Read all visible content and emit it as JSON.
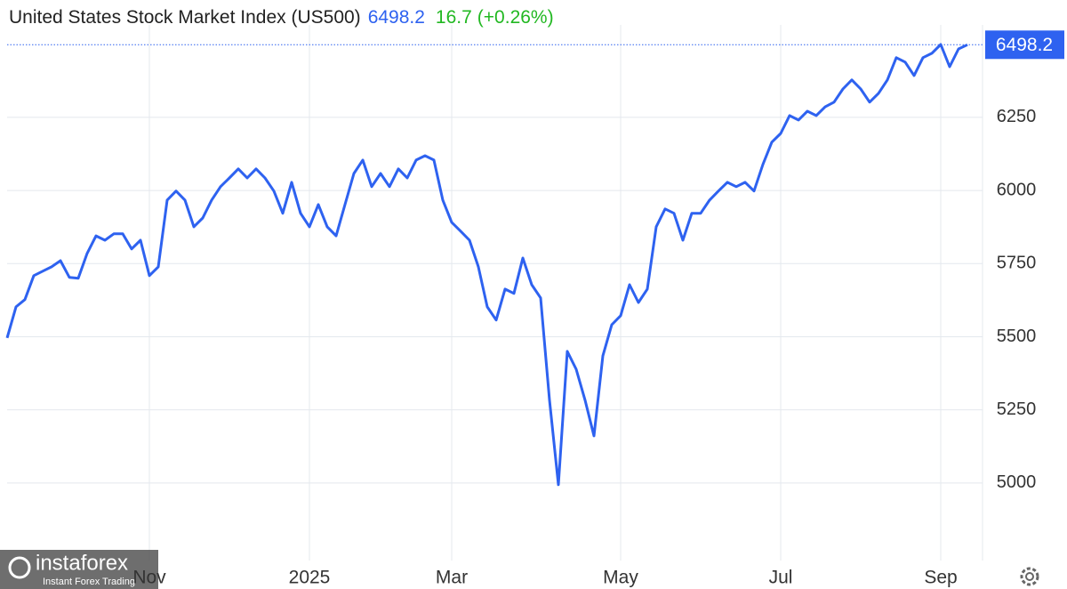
{
  "chart_data": {
    "type": "line",
    "title": "United States Stock Market Index (US500)",
    "last_value": 6498.2,
    "change": 16.7,
    "change_pct": {
      "value": 0.26,
      "label": "(+0.26%)"
    },
    "watermark": {
      "brand": "instaforex",
      "tagline": "Instant Forex Trading"
    },
    "categories": [
      null,
      null,
      null,
      null,
      null,
      null,
      null,
      null,
      null,
      null,
      null,
      null,
      null,
      null,
      null,
      null,
      "Nov",
      null,
      null,
      null,
      null,
      null,
      null,
      null,
      null,
      null,
      null,
      null,
      null,
      null,
      null,
      null,
      null,
      null,
      "2025",
      null,
      null,
      null,
      null,
      null,
      null,
      null,
      null,
      null,
      null,
      null,
      null,
      null,
      null,
      null,
      "Mar",
      null,
      null,
      null,
      null,
      null,
      null,
      null,
      null,
      null,
      null,
      null,
      null,
      null,
      null,
      null,
      null,
      null,
      null,
      "May",
      null,
      null,
      null,
      null,
      null,
      null,
      null,
      null,
      null,
      null,
      null,
      null,
      null,
      null,
      null,
      null,
      null,
      "Jul",
      null,
      null,
      null,
      null,
      null,
      null,
      null,
      null,
      null,
      null,
      null,
      null,
      null,
      null,
      null,
      null,
      null,
      "Sep",
      null,
      null,
      null
    ],
    "series": [
      {
        "color": "#2e62f0",
        "values": [
          5496,
          5602,
          5627,
          5709,
          5724,
          5739,
          5760,
          5703,
          5700,
          5785,
          5845,
          5830,
          5852,
          5852,
          5800,
          5830,
          5709,
          5739,
          5967,
          5998,
          5967,
          5876,
          5906,
          5967,
          6013,
          6043,
          6074,
          6043,
          6074,
          6043,
          5998,
          5922,
          6028,
          5922,
          5876,
          5952,
          5876,
          5845,
          5952,
          6058,
          6104,
          6013,
          6058,
          6013,
          6074,
          6043,
          6104,
          6119,
          6104,
          5967,
          5891,
          5861,
          5830,
          5739,
          5602,
          5557,
          5663,
          5648,
          5769,
          5678,
          5633,
          5283,
          4994,
          5450,
          5389,
          5283,
          5161,
          5435,
          5541,
          5572,
          5678,
          5617,
          5663,
          5876,
          5937,
          5922,
          5830,
          5922,
          5922,
          5967,
          5998,
          6028,
          6013,
          6028,
          5998,
          6089,
          6165,
          6195,
          6256,
          6241,
          6271,
          6256,
          6286,
          6302,
          6347,
          6378,
          6347,
          6302,
          6332,
          6378,
          6454,
          6439,
          6393,
          6454,
          6469,
          6499,
          6423,
          6484,
          6498.2
        ]
      }
    ],
    "ylim": [
      4735,
      6566
    ],
    "yticks": [
      5000,
      5250,
      5500,
      5750,
      6000,
      6250
    ],
    "grid": true
  }
}
